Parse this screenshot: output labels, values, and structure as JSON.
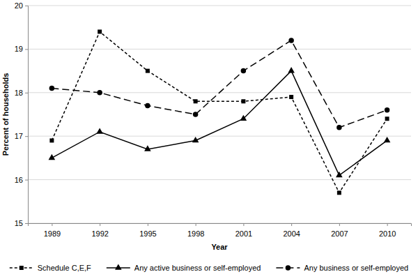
{
  "chart_data": {
    "type": "line",
    "x_label": "Year",
    "y_label": "Percent of households",
    "categories": [
      "1989",
      "1992",
      "1995",
      "1998",
      "2001",
      "2004",
      "2007",
      "2010"
    ],
    "series": [
      {
        "name": "Schedule C,E,F",
        "color": "#000000",
        "line_style": "dashed",
        "marker": "square",
        "values": [
          16.9,
          19.4,
          18.5,
          17.8,
          17.8,
          17.9,
          15.7,
          17.4
        ]
      },
      {
        "name": "Any active business or self-employed",
        "color": "#000000",
        "line_style": "solid",
        "marker": "triangle",
        "values": [
          16.5,
          17.1,
          16.7,
          16.9,
          17.4,
          18.5,
          16.1,
          16.9
        ]
      },
      {
        "name": "Any business or self-employed",
        "color": "#000000",
        "line_style": "long-dash",
        "marker": "circle",
        "values": [
          18.1,
          18.0,
          17.7,
          17.5,
          18.5,
          19.2,
          17.2,
          17.6
        ]
      }
    ],
    "ylim": [
      15,
      20
    ],
    "yticks": [
      15,
      16,
      17,
      18,
      19,
      20
    ],
    "grid": true,
    "legend": "bottom"
  }
}
